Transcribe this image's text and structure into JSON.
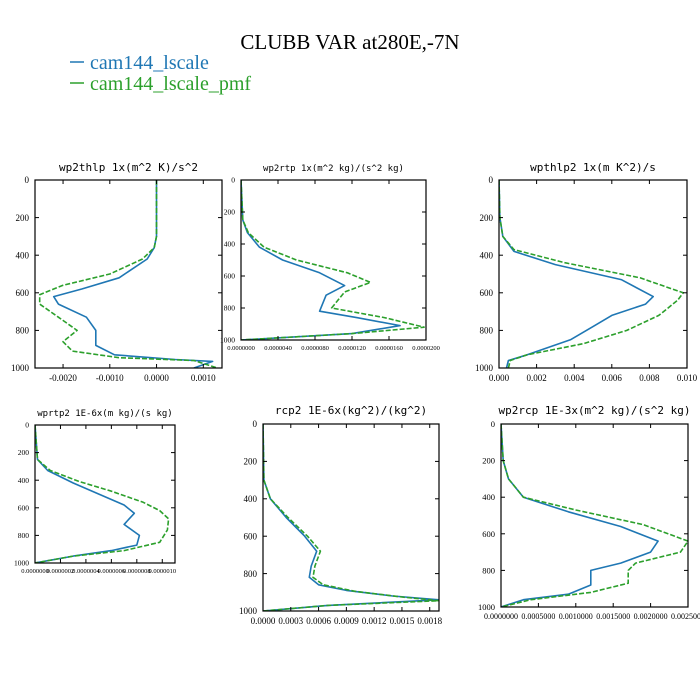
{
  "figure": {
    "title": "CLUBB VAR at280E,-7N",
    "legend": [
      {
        "label": "cam144_lscale",
        "color": "#1f77b4"
      },
      {
        "label": "cam144_lscale_pmf",
        "color": "#2ca02c"
      }
    ]
  },
  "chart_data": [
    {
      "type": "line",
      "title": "wp2thlp   1x(m^2 K)/s^2",
      "xlim": [
        -0.0026,
        0.0014
      ],
      "ylim": [
        1000,
        0
      ],
      "xticks": [
        "-0.0020",
        "-0.0010",
        "0.0000",
        "0.0010"
      ],
      "xtick_values": [
        -0.002,
        -0.001,
        0.0,
        0.001
      ],
      "yticks": [
        "0",
        "200",
        "400",
        "600",
        "800",
        "1000"
      ],
      "ytick_values": [
        0,
        200,
        400,
        600,
        800,
        1000
      ],
      "series": [
        {
          "name": "cam144_lscale",
          "color": "#1f77b4",
          "dashed": false,
          "x": [
            0.0,
            0.0,
            -5e-05,
            -0.0002,
            -0.0008,
            -0.0016,
            -0.0022,
            -0.0021,
            -0.0015,
            -0.0013,
            -0.0013,
            -0.0009,
            0.0004,
            0.0012,
            0.0008
          ],
          "y": [
            0,
            300,
            360,
            420,
            520,
            580,
            620,
            660,
            730,
            800,
            880,
            930,
            955,
            965,
            1000
          ]
        },
        {
          "name": "cam144_lscale_pmf",
          "color": "#2ca02c",
          "dashed": true,
          "x": [
            0.0,
            0.0,
            -5e-05,
            -0.0003,
            -0.001,
            -0.002,
            -0.0025,
            -0.0025,
            -0.0021,
            -0.0017,
            -0.002,
            -0.0018,
            -0.0008,
            0.0008,
            0.0013
          ],
          "y": [
            0,
            300,
            360,
            420,
            500,
            560,
            610,
            660,
            730,
            800,
            860,
            910,
            945,
            960,
            1000
          ]
        }
      ]
    },
    {
      "type": "line",
      "title": "wp2rtp   1x(m^2 kg)/(s^2 kg)",
      "xlim": [
        0.0,
        2e-05
      ],
      "ylim": [
        1000,
        0
      ],
      "xticks": [
        "0.0000000",
        "0.0000040",
        "0.0000080",
        "0.0000120",
        "0.0000160",
        "0.0000200"
      ],
      "xtick_values": [
        0.0,
        4e-06,
        8e-06,
        1.2e-05,
        1.6e-05,
        2e-05
      ],
      "yticks": [
        "0",
        "200",
        "400",
        "600",
        "800",
        "1000"
      ],
      "ytick_values": [
        0,
        200,
        400,
        600,
        800,
        1000
      ],
      "series": [
        {
          "name": "cam144_lscale",
          "color": "#1f77b4",
          "dashed": false,
          "x": [
            0.0,
            2e-07,
            7e-07,
            2e-06,
            4.5e-06,
            8.5e-06,
            1.12e-05,
            9.2e-06,
            8.5e-06,
            1.25e-05,
            1.72e-05,
            1.2e-05,
            0.0
          ],
          "y": [
            0,
            250,
            330,
            420,
            500,
            580,
            660,
            720,
            820,
            860,
            910,
            960,
            1000
          ]
        },
        {
          "name": "cam144_lscale_pmf",
          "color": "#2ca02c",
          "dashed": true,
          "x": [
            0.0,
            2e-07,
            8e-07,
            2.5e-06,
            6e-06,
            1.15e-05,
            1.4e-05,
            1.12e-05,
            9.8e-06,
            1.55e-05,
            1.98e-05,
            1.2e-05,
            0.0
          ],
          "y": [
            0,
            250,
            330,
            420,
            500,
            580,
            640,
            700,
            800,
            860,
            920,
            960,
            1000
          ]
        }
      ]
    },
    {
      "type": "line",
      "title": "wpthlp2   1x(m K^2)/s",
      "xlim": [
        0.0,
        0.01
      ],
      "ylim": [
        1000,
        0
      ],
      "xticks": [
        "0.000",
        "0.002",
        "0.004",
        "0.006",
        "0.008",
        "0.010"
      ],
      "xtick_values": [
        0.0,
        0.002,
        0.004,
        0.006,
        0.008,
        0.01
      ],
      "yticks": [
        "0",
        "200",
        "400",
        "600",
        "800",
        "1000"
      ],
      "ytick_values": [
        0,
        200,
        400,
        600,
        800,
        1000
      ],
      "series": [
        {
          "name": "cam144_lscale",
          "color": "#1f77b4",
          "dashed": false,
          "x": [
            0.0,
            5e-05,
            0.0002,
            0.0008,
            0.003,
            0.0065,
            0.0082,
            0.0078,
            0.006,
            0.005,
            0.0038,
            0.0015,
            0.0005,
            0.0004
          ],
          "y": [
            0,
            200,
            300,
            380,
            450,
            530,
            620,
            660,
            720,
            780,
            850,
            930,
            960,
            1000
          ]
        },
        {
          "name": "cam144_lscale_pmf",
          "color": "#2ca02c",
          "dashed": true,
          "x": [
            0.0,
            5e-05,
            0.0002,
            0.0008,
            0.0035,
            0.0075,
            0.0098,
            0.0095,
            0.0085,
            0.0068,
            0.0045,
            0.0015,
            0.0006,
            0.0005
          ],
          "y": [
            0,
            200,
            300,
            370,
            440,
            520,
            600,
            640,
            720,
            800,
            870,
            930,
            960,
            1000
          ]
        }
      ]
    },
    {
      "type": "line",
      "title": "wprtp2   1E-6x(m kg)/(s kg)",
      "xlim": [
        0.0,
        1.1e-06
      ],
      "ylim": [
        1000,
        0
      ],
      "xticks": [
        "0.0000000",
        "0.0000002",
        "0.0000004",
        "0.0000006",
        "0.0000008",
        "0.0000010"
      ],
      "xtick_values": [
        0.0,
        2e-07,
        4e-07,
        6e-07,
        8e-07,
        1e-06
      ],
      "yticks": [
        "0",
        "200",
        "400",
        "600",
        "800",
        "1000"
      ],
      "ytick_values": [
        0,
        200,
        400,
        600,
        800,
        1000
      ],
      "series": [
        {
          "name": "cam144_lscale",
          "color": "#1f77b4",
          "dashed": false,
          "x": [
            0.0,
            2e-08,
            1e-07,
            3e-07,
            5e-07,
            7e-07,
            7.8e-07,
            7e-07,
            8.2e-07,
            8e-07,
            6e-07,
            3e-07,
            0.0
          ],
          "y": [
            0,
            250,
            330,
            420,
            500,
            580,
            640,
            720,
            800,
            870,
            910,
            950,
            1000
          ]
        },
        {
          "name": "cam144_lscale_pmf",
          "color": "#2ca02c",
          "dashed": true,
          "x": [
            0.0,
            2e-08,
            1.2e-07,
            3.5e-07,
            6e-07,
            8.5e-07,
            9.8e-07,
            1.05e-06,
            1.04e-06,
            9.8e-07,
            7e-07,
            3e-07,
            0.0
          ],
          "y": [
            0,
            250,
            330,
            410,
            480,
            560,
            620,
            680,
            760,
            850,
            910,
            950,
            1000
          ]
        }
      ]
    },
    {
      "type": "line",
      "title": "rcp2   1E-6x(kg^2)/(kg^2)",
      "xlim": [
        0.0,
        0.0019
      ],
      "ylim": [
        1000,
        0
      ],
      "xticks": [
        "0.0000",
        "0.0003",
        "0.0006",
        "0.0009",
        "0.0012",
        "0.0015",
        "0.0018"
      ],
      "xtick_values": [
        0.0,
        0.0003,
        0.0006,
        0.0009,
        0.0012,
        0.0015,
        0.0018
      ],
      "yticks": [
        "0",
        "200",
        "400",
        "600",
        "800",
        "1000"
      ],
      "ytick_values": [
        0,
        200,
        400,
        600,
        800,
        1000
      ],
      "series": [
        {
          "name": "cam144_lscale",
          "color": "#1f77b4",
          "dashed": false,
          "x": [
            0.0,
            1e-05,
            8e-05,
            0.00025,
            0.00045,
            0.00058,
            0.00052,
            0.0005,
            0.0006,
            0.0009,
            0.0014,
            0.0019,
            0.0007,
            0.0
          ],
          "y": [
            0,
            300,
            400,
            500,
            600,
            680,
            760,
            820,
            860,
            890,
            920,
            940,
            970,
            1000
          ]
        },
        {
          "name": "cam144_lscale_pmf",
          "color": "#2ca02c",
          "dashed": true,
          "x": [
            0.0,
            1e-05,
            8e-05,
            0.00027,
            0.00048,
            0.00062,
            0.00056,
            0.00054,
            0.00065,
            0.001,
            0.0015,
            0.0019,
            0.0007,
            0.0
          ],
          "y": [
            0,
            300,
            400,
            500,
            600,
            680,
            760,
            820,
            860,
            895,
            925,
            945,
            970,
            1000
          ]
        }
      ]
    },
    {
      "type": "line",
      "title": "wp2rcp   1E-3x(m^2 kg)/(s^2 kg)",
      "xlim": [
        0.0,
        0.0025
      ],
      "ylim": [
        1000,
        0
      ],
      "xticks": [
        "0.0000000",
        "0.0005000",
        "0.0010000",
        "0.0015000",
        "0.0020000",
        "0.0025000"
      ],
      "xtick_values": [
        0.0,
        0.0005,
        0.001,
        0.0015,
        0.002,
        0.0025
      ],
      "yticks": [
        "0",
        "200",
        "400",
        "600",
        "800",
        "1000"
      ],
      "ytick_values": [
        0,
        200,
        400,
        600,
        800,
        1000
      ],
      "series": [
        {
          "name": "cam144_lscale",
          "color": "#1f77b4",
          "dashed": false,
          "x": [
            0.0,
            3e-05,
            0.0001,
            0.0003,
            0.0009,
            0.0016,
            0.0021,
            0.002,
            0.0016,
            0.0012,
            0.0012,
            0.0009,
            0.0003,
            0.0
          ],
          "y": [
            0,
            200,
            300,
            400,
            480,
            560,
            640,
            700,
            760,
            800,
            880,
            930,
            960,
            1000
          ]
        },
        {
          "name": "cam144_lscale_pmf",
          "color": "#2ca02c",
          "dashed": true,
          "x": [
            0.0,
            3e-05,
            0.0001,
            0.0003,
            0.001,
            0.0019,
            0.0025,
            0.0024,
            0.0018,
            0.0017,
            0.0017,
            0.0012,
            0.0004,
            0.0
          ],
          "y": [
            0,
            200,
            300,
            400,
            470,
            550,
            640,
            700,
            760,
            800,
            870,
            920,
            960,
            1000
          ]
        }
      ]
    }
  ]
}
